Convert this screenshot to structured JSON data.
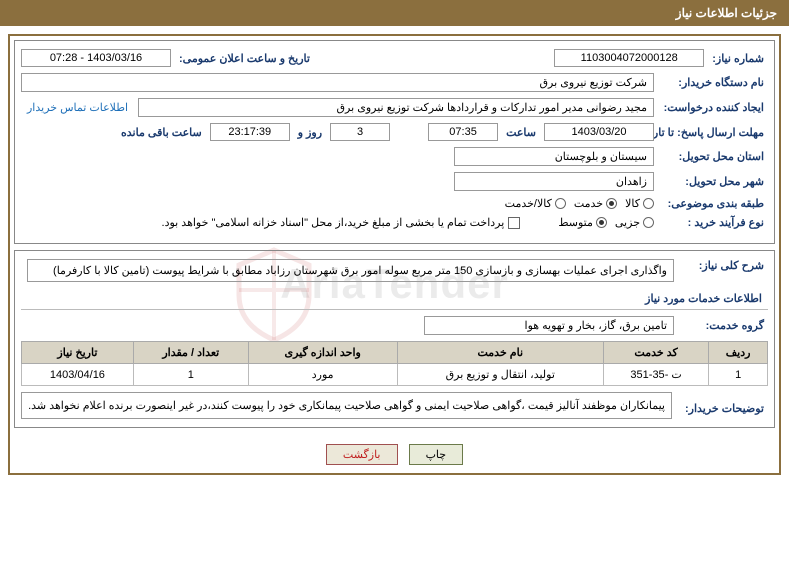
{
  "header": {
    "title": "جزئیات اطلاعات نیاز"
  },
  "panel1": {
    "need_no_label": "شماره نیاز:",
    "need_no": "1103004072000128",
    "announce_label": "تاریخ و ساعت اعلان عمومی:",
    "announce": "1403/03/16 - 07:28",
    "buyer_org_label": "نام دستگاه خریدار:",
    "buyer_org": "شرکت توزیع نیروی برق",
    "requester_label": "ایجاد کننده درخواست:",
    "requester": "مجید رضوانی مدیر امور تدارکات و قراردادها شرکت توزیع نیروی برق",
    "contact_link": "اطلاعات تماس خریدار",
    "deadline_label": "مهلت ارسال پاسخ: تا تاریخ:",
    "deadline_date": "1403/03/20",
    "time_label": "ساعت",
    "deadline_time": "07:35",
    "days": "3",
    "days_label": "روز و",
    "remaining_time": "23:17:39",
    "remaining_label": "ساعت باقی مانده",
    "province_label": "استان محل تحویل:",
    "province": "سیستان و بلوچستان",
    "city_label": "شهر محل تحویل:",
    "city": "زاهدان",
    "category_label": "طبقه بندی موضوعی:",
    "category_goods": "کالا",
    "category_service": "خدمت",
    "category_both": "کالا/خدمت",
    "process_label": "نوع فرآیند خرید :",
    "process_partial": "جزیی",
    "process_medium": "متوسط",
    "payment_note": "پرداخت تمام یا بخشی از مبلغ خرید،از محل \"اسناد خزانه اسلامی\" خواهد بود."
  },
  "panel2": {
    "desc_label": "شرح کلی نیاز:",
    "desc": "واگذاری اجرای عملیات بهسازی و بازسازی 150 متر مربع سوله امور برق شهرستان رزاباد مطابق با شرایط پیوست (تامین کالا با کارفرما)",
    "section": "اطلاعات خدمات مورد نیاز",
    "group_label": "گروه خدمت:",
    "group": "تامین برق، گاز، بخار و تهویه هوا",
    "table": {
      "headers": [
        "ردیف",
        "کد خدمت",
        "نام خدمت",
        "واحد اندازه گیری",
        "تعداد / مقدار",
        "تاریخ نیاز"
      ],
      "rows": [
        [
          "1",
          "ت -35-351",
          "تولید، انتقال و توزیع برق",
          "مورد",
          "1",
          "1403/04/16"
        ]
      ]
    },
    "buyer_note_label": "توضیحات خریدار:",
    "buyer_note": "پیمانکاران موظفند آنالیز قیمت ،گواهی صلاحیت ایمنی و گواهی صلاحیت پیمانکاری خود را پیوست کنند،در غیر اینصورت برنده اعلام نخواهد شد."
  },
  "buttons": {
    "print": "چاپ",
    "back": "بازگشت"
  },
  "watermark": "AriaTender"
}
